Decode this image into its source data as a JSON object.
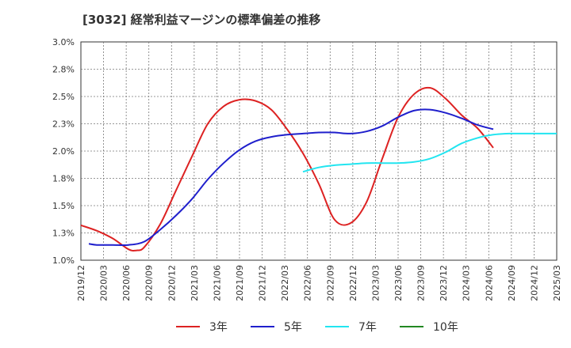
{
  "chart_data": {
    "type": "line",
    "title": "[3032]  経常利益マージンの標準偏差の推移",
    "xlabel": "",
    "ylabel": "",
    "ylim": [
      1.0,
      3.0
    ],
    "y_ticks": [
      "1.0%",
      "1.3%",
      "1.5%",
      "1.8%",
      "2.0%",
      "2.3%",
      "2.5%",
      "2.8%",
      "3.0%"
    ],
    "x_ticks": [
      "2019/12",
      "2020/03",
      "2020/06",
      "2020/09",
      "2020/12",
      "2021/03",
      "2021/06",
      "2021/09",
      "2021/12",
      "2022/03",
      "2022/06",
      "2022/09",
      "2022/12",
      "2023/03",
      "2023/06",
      "2023/09",
      "2023/12",
      "2024/03",
      "2024/06",
      "2024/09",
      "2024/12",
      "2025/03"
    ],
    "grid": true,
    "legend_position": "bottom",
    "series": [
      {
        "name": "3年",
        "color": "#dd2222",
        "points": [
          [
            0,
            1.32
          ],
          [
            1,
            1.27
          ],
          [
            2,
            1.2
          ],
          [
            3,
            1.1
          ],
          [
            3.5,
            1.09
          ],
          [
            4,
            1.12
          ],
          [
            5,
            1.33
          ],
          [
            6,
            1.64
          ],
          [
            7,
            1.95
          ],
          [
            8,
            2.25
          ],
          [
            9,
            2.41
          ],
          [
            10,
            2.47
          ],
          [
            11,
            2.46
          ],
          [
            12,
            2.38
          ],
          [
            13,
            2.2
          ],
          [
            14,
            1.98
          ],
          [
            15,
            1.7
          ],
          [
            16,
            1.37
          ],
          [
            17,
            1.34
          ],
          [
            18,
            1.53
          ],
          [
            19,
            1.93
          ],
          [
            20,
            2.31
          ],
          [
            21,
            2.52
          ],
          [
            22,
            2.58
          ],
          [
            23,
            2.48
          ],
          [
            24,
            2.33
          ],
          [
            25,
            2.21
          ],
          [
            26,
            2.03
          ]
        ]
      },
      {
        "name": "5年",
        "color": "#1f1fcc",
        "points": [
          [
            0.5,
            1.15
          ],
          [
            1,
            1.14
          ],
          [
            2,
            1.14
          ],
          [
            3,
            1.14
          ],
          [
            4,
            1.17
          ],
          [
            5,
            1.28
          ],
          [
            6,
            1.41
          ],
          [
            7,
            1.56
          ],
          [
            8,
            1.74
          ],
          [
            9,
            1.89
          ],
          [
            10,
            2.01
          ],
          [
            11,
            2.09
          ],
          [
            12,
            2.13
          ],
          [
            13,
            2.15
          ],
          [
            14,
            2.16
          ],
          [
            15,
            2.17
          ],
          [
            16,
            2.17
          ],
          [
            17,
            2.16
          ],
          [
            18,
            2.18
          ],
          [
            19,
            2.23
          ],
          [
            20,
            2.31
          ],
          [
            21,
            2.37
          ],
          [
            22,
            2.38
          ],
          [
            23,
            2.35
          ],
          [
            24,
            2.3
          ],
          [
            25,
            2.24
          ],
          [
            26,
            2.2
          ]
        ]
      },
      {
        "name": "7年",
        "color": "#22e5f0",
        "points": [
          [
            14,
            1.81
          ],
          [
            15,
            1.85
          ],
          [
            16,
            1.87
          ],
          [
            17,
            1.88
          ],
          [
            18,
            1.89
          ],
          [
            19,
            1.89
          ],
          [
            20,
            1.89
          ],
          [
            21,
            1.9
          ],
          [
            22,
            1.93
          ],
          [
            23,
            1.99
          ],
          [
            24,
            2.07
          ],
          [
            25,
            2.12
          ],
          [
            26,
            2.15
          ],
          [
            27,
            2.16
          ],
          [
            28,
            2.16
          ],
          [
            29,
            2.16
          ],
          [
            30,
            2.16
          ]
        ]
      },
      {
        "name": "10年",
        "color": "#228822",
        "points": []
      }
    ]
  }
}
